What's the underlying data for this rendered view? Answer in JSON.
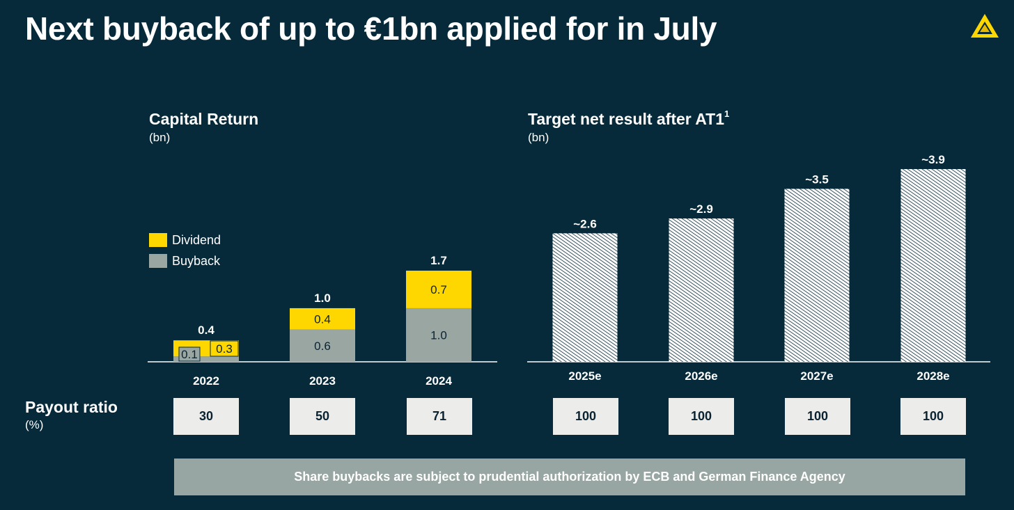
{
  "title": "Next buyback of up to €1bn applied for in July",
  "colors": {
    "background": "#062a3a",
    "dividend": "#ffd700",
    "buyback": "#9aa6a2",
    "payout_box": "#ececea",
    "footer": "#97a6a2"
  },
  "logo": {
    "icon": "commerzbank-ribbon-icon"
  },
  "capital_return": {
    "title": "Capital Return",
    "unit": "(bn)",
    "legend": {
      "dividend": "Dividend",
      "buyback": "Buyback"
    }
  },
  "net_result": {
    "title": "Target net result after AT1",
    "footnote": "1",
    "unit": "(bn)"
  },
  "payout": {
    "label": "Payout ratio",
    "unit": "(%)",
    "values": [
      "30",
      "50",
      "71",
      "100",
      "100",
      "100",
      "100"
    ]
  },
  "footer_note": "Share buybacks are subject to prudential authorization by ECB and German Finance Agency",
  "chart_data": [
    {
      "type": "bar",
      "stacked": true,
      "title": "Capital Return",
      "ylabel": "(bn)",
      "categories": [
        "2022",
        "2023",
        "2024"
      ],
      "series": [
        {
          "name": "Buyback",
          "values": [
            0.1,
            0.6,
            1.0
          ],
          "labels": [
            "0.1",
            "0.6",
            "1.0"
          ]
        },
        {
          "name": "Dividend",
          "values": [
            0.3,
            0.4,
            0.7
          ],
          "labels": [
            "0.3",
            "0.4",
            "0.7"
          ]
        }
      ],
      "totals": [
        "0.4",
        "1.0",
        "1.7"
      ],
      "ylim": [
        0,
        1.7
      ],
      "legend": "left"
    },
    {
      "type": "bar",
      "title": "Target net result after AT1",
      "ylabel": "(bn)",
      "categories": [
        "2025e",
        "2026e",
        "2027e",
        "2028e"
      ],
      "values": [
        2.6,
        2.9,
        3.5,
        3.9
      ],
      "labels": [
        "~2.6",
        "~2.9",
        "~3.5",
        "~3.9"
      ],
      "ylim": [
        0,
        3.9
      ],
      "pattern": "hatched"
    }
  ]
}
